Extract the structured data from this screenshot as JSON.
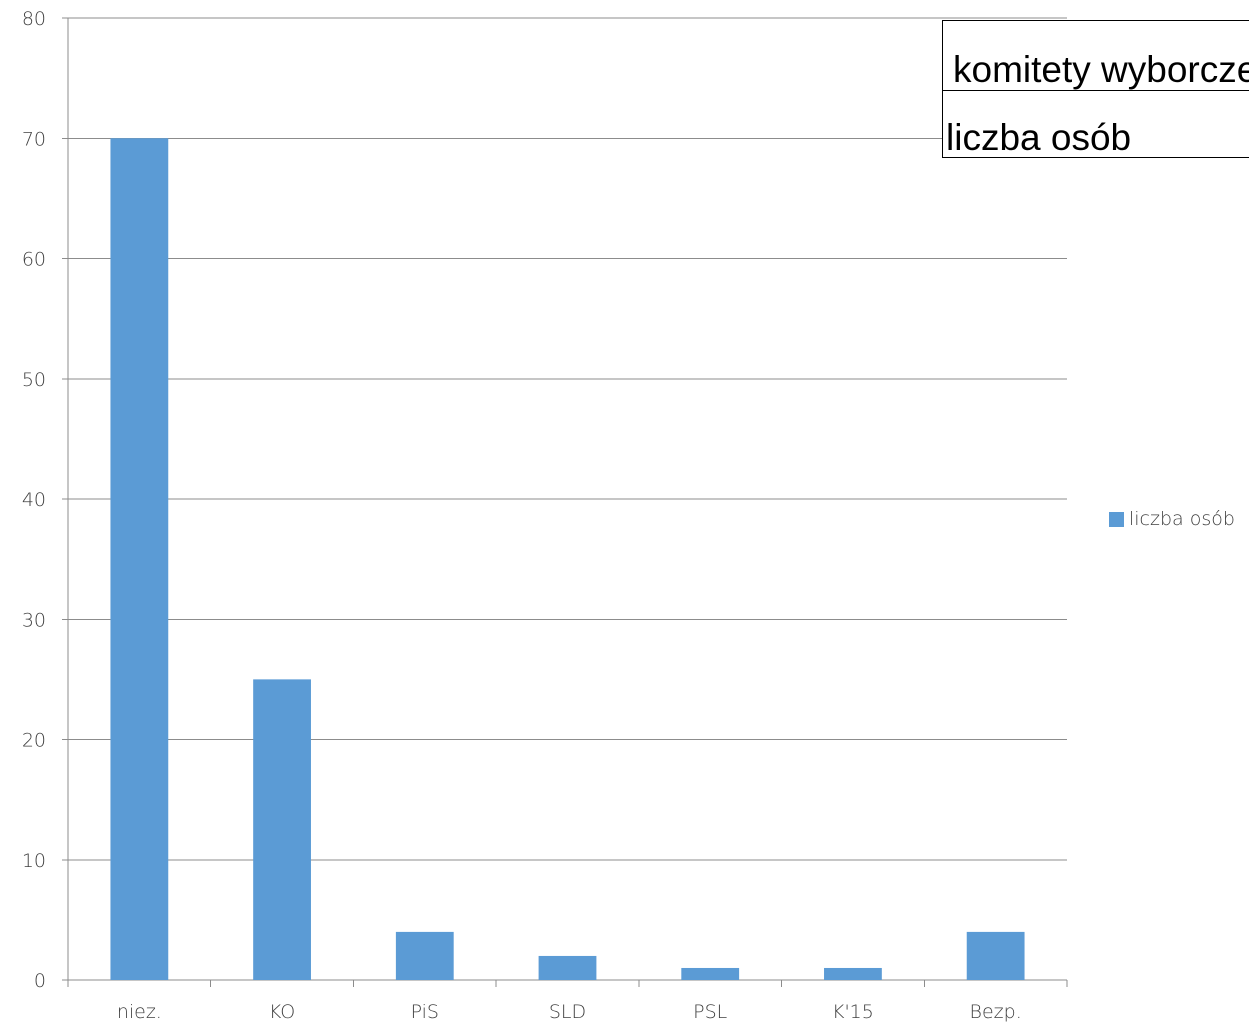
{
  "chart_data": {
    "type": "bar",
    "categories": [
      "niez.",
      "KO",
      "PiS",
      "SLD",
      "PSL",
      "K'15",
      "Bezp."
    ],
    "series": [
      {
        "name": "liczba osób",
        "values": [
          70,
          25,
          4,
          2,
          1,
          1,
          4
        ],
        "color": "#5B9BD5"
      }
    ],
    "ylim": [
      0,
      80
    ],
    "yticks": [
      0,
      10,
      20,
      30,
      40,
      50,
      60,
      70,
      80
    ],
    "grid": true,
    "legend_position": "right",
    "overlay_text": {
      "row1": "komitety wyborcze",
      "row2": "liczba osób"
    }
  }
}
